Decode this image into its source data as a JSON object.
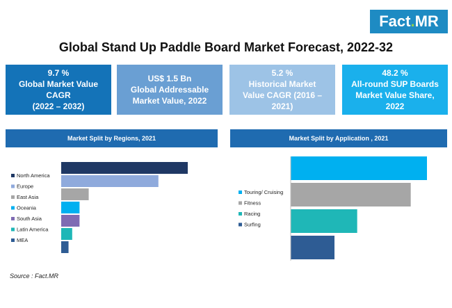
{
  "brand": {
    "fact": "Fact",
    "dot": ".",
    "mr": "MR"
  },
  "title": "Global Stand Up Paddle Board Market Forecast, 2022-32",
  "kpis": [
    {
      "line1": "9.7 %",
      "line2": "Global Market Value",
      "line3": "CAGR",
      "line4": "(2022 – 2032)",
      "color": "#1473b8"
    },
    {
      "line1": "US$ 1.5 Bn",
      "line2": "Global Addressable",
      "line3": "Market Value, 2022",
      "line4": "",
      "color": "#6a9fd3"
    },
    {
      "line1": "5.2 %",
      "line2": "Historical Market",
      "line3": "Value CAGR (2016 –",
      "line4": "2021)",
      "color": "#9dc3e6"
    },
    {
      "line1": "48.2 %",
      "line2": "All-round SUP Boards",
      "line3": "Market Value Share,",
      "line4": "2022",
      "color": "#1ab0ec"
    }
  ],
  "sections": {
    "regions_title": "Market Split by Regions, 2021",
    "application_title": "Market Split by Application , 2021"
  },
  "source": "Source : Fact.MR",
  "chart_data": [
    {
      "type": "bar",
      "orientation": "horizontal",
      "title": "Market Split by Regions, 2021",
      "categories": [
        "North America",
        "Europe",
        "East Asia",
        "Oceania",
        "South Asia",
        "Latin America",
        "MEA"
      ],
      "values": [
        34.5,
        26.5,
        7.5,
        5,
        5,
        3,
        2
      ],
      "colors": [
        "#1f3864",
        "#8faadc",
        "#a6a6a6",
        "#00b0f0",
        "#7f6bb3",
        "#1fb7b7",
        "#2e5c94"
      ],
      "legend": "left"
    },
    {
      "type": "bar",
      "orientation": "horizontal",
      "title": "Market Split by Application , 2021",
      "categories": [
        "Touring/ Cruising",
        "Fitness",
        "Racing",
        "Surfing"
      ],
      "values": [
        42,
        37,
        20.5,
        13.5
      ],
      "colors": [
        "#00b0f0",
        "#a6a6a6",
        "#1fb7b7",
        "#2e5c94"
      ],
      "legend": "left"
    }
  ]
}
